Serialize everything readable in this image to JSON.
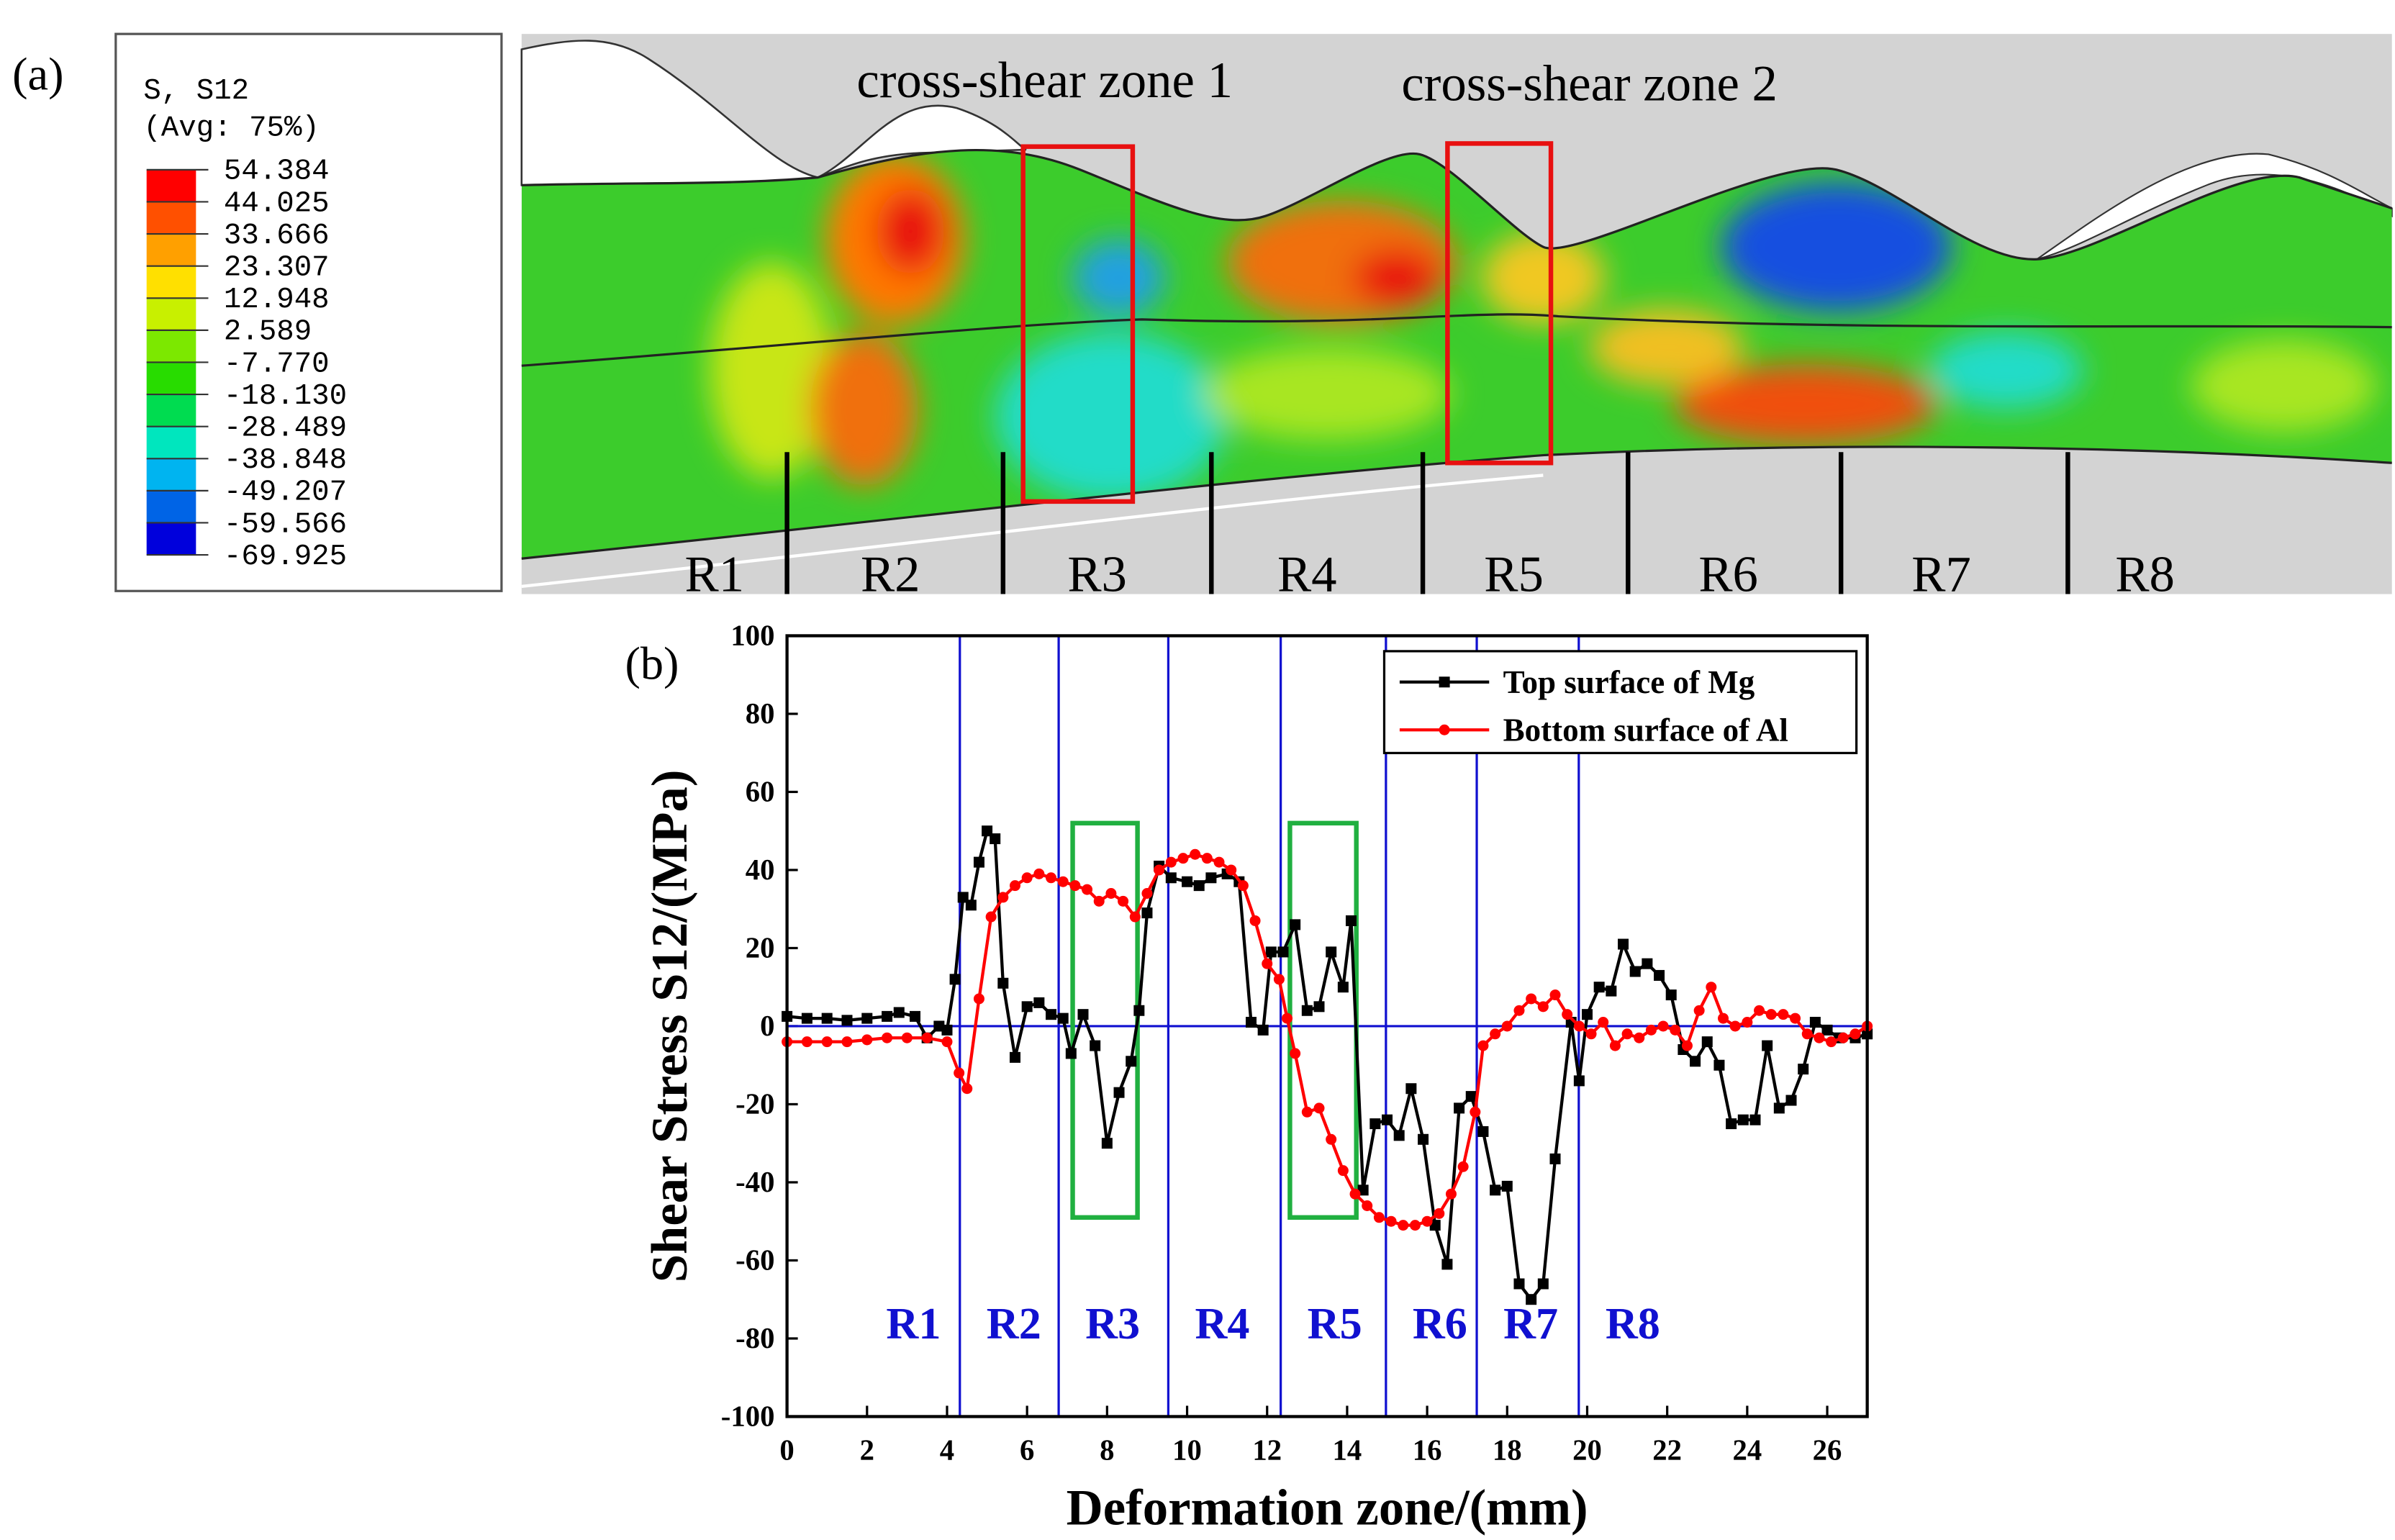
{
  "panel_a": {
    "label": "(a)",
    "legend": {
      "title": "S, S12",
      "subtitle": "(Avg: 75%)",
      "levels": [
        "54.384",
        "44.025",
        "33.666",
        "23.307",
        "12.948",
        "2.589",
        "-7.770",
        "-18.130",
        "-28.489",
        "-38.848",
        "-49.207",
        "-59.566",
        "-69.925"
      ]
    },
    "annotations": [
      "cross-shear zone 1",
      "cross-shear zone 2"
    ],
    "regions": [
      "R1",
      "R2",
      "R3",
      "R4",
      "R5",
      "R6",
      "R7",
      "R8"
    ]
  },
  "chart_data": {
    "type": "line",
    "panel_label": "(b)",
    "x_label": "Deformation zone/(mm)",
    "y_label": "Shear Stress S12/(MPa)",
    "xlim": [
      0,
      27
    ],
    "ylim": [
      -100,
      100
    ],
    "xticks": [
      0,
      2,
      4,
      6,
      8,
      10,
      12,
      14,
      16,
      18,
      20,
      22,
      24,
      26
    ],
    "yticks": [
      -100,
      -80,
      -60,
      -40,
      -20,
      0,
      20,
      40,
      60,
      80,
      100
    ],
    "region_boundaries": [
      4.32,
      6.79,
      9.53,
      12.34,
      14.97,
      17.24,
      19.79
    ],
    "region_labels": [
      "R1",
      "R2",
      "R3",
      "R4",
      "R5",
      "R6",
      "R7",
      "R8"
    ],
    "highlight_boxes": [
      {
        "x": [
          7.14,
          8.76
        ],
        "y": [
          -49,
          52
        ]
      },
      {
        "x": [
          12.57,
          14.23
        ],
        "y": [
          -49,
          52
        ]
      }
    ],
    "legend_position": "upper right",
    "series": [
      {
        "name": "Top surface of Mg",
        "color": "#000000",
        "marker": "square",
        "x": [
          0,
          0.5,
          1,
          1.5,
          2,
          2.5,
          2.8,
          3.2,
          3.5,
          3.8,
          4.0,
          4.2,
          4.4,
          4.6,
          4.8,
          5.0,
          5.2,
          5.4,
          5.7,
          6.0,
          6.3,
          6.6,
          6.9,
          7.1,
          7.4,
          7.7,
          8.0,
          8.3,
          8.6,
          8.8,
          9.0,
          9.3,
          9.6,
          10.0,
          10.3,
          10.6,
          11.0,
          11.3,
          11.6,
          11.9,
          12.1,
          12.4,
          12.7,
          13.0,
          13.3,
          13.6,
          13.9,
          14.1,
          14.4,
          14.7,
          15.0,
          15.3,
          15.6,
          15.9,
          16.2,
          16.5,
          16.8,
          17.1,
          17.4,
          17.7,
          18.0,
          18.3,
          18.6,
          18.9,
          19.2,
          19.6,
          19.8,
          20.0,
          20.3,
          20.6,
          20.9,
          21.2,
          21.5,
          21.8,
          22.1,
          22.4,
          22.7,
          23.0,
          23.3,
          23.6,
          23.9,
          24.2,
          24.5,
          24.8,
          25.1,
          25.4,
          25.7,
          26.0,
          26.3,
          26.7,
          27
        ],
        "values": [
          2.5,
          2,
          2,
          1.5,
          2,
          2.5,
          3.5,
          2.5,
          -3,
          0,
          -1,
          12,
          33,
          31,
          42,
          50,
          48,
          11,
          -8,
          5,
          6,
          3,
          2,
          -7,
          3,
          -5,
          -30,
          -17,
          -9,
          4,
          29,
          41,
          38,
          37,
          36,
          38,
          39,
          37,
          1,
          -1,
          19,
          19,
          26,
          4,
          5,
          19,
          10,
          27,
          -42,
          -25,
          -24,
          -28,
          -16,
          -29,
          -51,
          -61,
          -21,
          -18,
          -27,
          -42,
          -41,
          -66,
          -70,
          -66,
          -34,
          1,
          -14,
          3,
          10,
          9,
          21,
          14,
          16,
          13,
          8,
          -6,
          -9,
          -4,
          -10,
          -25,
          -24,
          -24,
          -5,
          -21,
          -19,
          -11,
          1,
          -1,
          -3,
          -3,
          -2
        ]
      },
      {
        "name": "Bottom surface of Al",
        "color": "#ff0000",
        "marker": "circle",
        "x": [
          0,
          0.5,
          1,
          1.5,
          2,
          2.5,
          3,
          3.5,
          4.0,
          4.3,
          4.5,
          4.8,
          5.1,
          5.4,
          5.7,
          6.0,
          6.3,
          6.6,
          6.9,
          7.2,
          7.5,
          7.8,
          8.1,
          8.4,
          8.7,
          9.0,
          9.3,
          9.6,
          9.9,
          10.2,
          10.5,
          10.8,
          11.1,
          11.4,
          11.7,
          12.0,
          12.3,
          12.5,
          12.7,
          13.0,
          13.3,
          13.6,
          13.9,
          14.2,
          14.5,
          14.8,
          15.1,
          15.4,
          15.7,
          16.0,
          16.3,
          16.6,
          16.9,
          17.2,
          17.4,
          17.7,
          18.0,
          18.3,
          18.6,
          18.9,
          19.2,
          19.5,
          19.8,
          20.1,
          20.4,
          20.7,
          21.0,
          21.3,
          21.6,
          21.9,
          22.2,
          22.5,
          22.8,
          23.1,
          23.4,
          23.7,
          24.0,
          24.3,
          24.6,
          24.9,
          25.2,
          25.5,
          25.8,
          26.1,
          26.4,
          26.7,
          27
        ],
        "values": [
          -4,
          -4,
          -4,
          -4,
          -3.5,
          -3,
          -3,
          -3,
          -4,
          -12,
          -16,
          7,
          28,
          33,
          36,
          38,
          39,
          38,
          37,
          36,
          35,
          32,
          34,
          32,
          28,
          34,
          40,
          42,
          43,
          44,
          43,
          42,
          40,
          36,
          27,
          16,
          12,
          2,
          -7,
          -22,
          -21,
          -29,
          -37,
          -43,
          -46,
          -49,
          -50,
          -51,
          -51,
          -50,
          -48,
          -43,
          -36,
          -22,
          -5,
          -2,
          0,
          4,
          7,
          5,
          8,
          3,
          0,
          -2,
          1,
          -5,
          -2,
          -3,
          -1,
          0,
          -1,
          -5,
          4,
          10,
          2,
          0,
          1,
          4,
          3,
          3,
          2,
          -2,
          -3,
          -4,
          -3,
          -2,
          0
        ]
      }
    ]
  }
}
